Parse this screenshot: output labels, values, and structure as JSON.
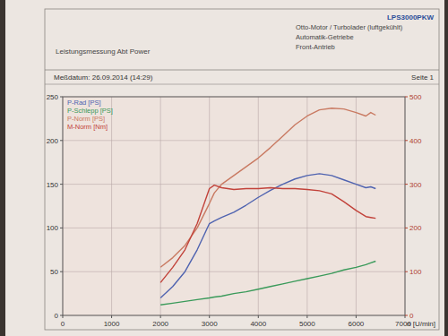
{
  "header": {
    "left": [
      "Leistungsmessung Abt Power"
    ],
    "right": [
      "LPS3000PKW",
      "Otto-Motor / Turbolader (luftgekühlt)",
      "Automatik-Getriebe",
      "Front-Antrieb"
    ],
    "date": "Meßdatum: 26.09.2014 (14:29)",
    "page": "Seite 1"
  },
  "chart_data": {
    "type": "line",
    "x_label": "n [U/min]",
    "x": [
      2000,
      2250,
      2500,
      2750,
      3000,
      3100,
      3250,
      3500,
      3750,
      4000,
      4250,
      4500,
      4750,
      5000,
      5250,
      5500,
      5750,
      6000,
      6200,
      6300,
      6400
    ],
    "series": [
      {
        "name": "P-Rad [PS]",
        "color": "#4f63b0",
        "values": [
          20,
          33,
          50,
          75,
          105,
          108,
          112,
          118,
          126,
          135,
          143,
          150,
          156,
          160,
          162,
          160,
          155,
          150,
          146,
          147,
          145
        ]
      },
      {
        "name": "P-Schlepp [PS]",
        "color": "#3a9a5a",
        "values": [
          12,
          14,
          16,
          18,
          20,
          21,
          22,
          25,
          27,
          30,
          33,
          36,
          39,
          42,
          45,
          48,
          52,
          55,
          58,
          60,
          62
        ]
      },
      {
        "name": "P-Norm [PS]",
        "color": "#c97a62",
        "values": [
          55,
          66,
          80,
          100,
          128,
          140,
          150,
          160,
          170,
          180,
          192,
          205,
          218,
          228,
          235,
          237,
          236,
          232,
          228,
          232,
          229
        ]
      },
      {
        "name": "M-Norm [Nm]",
        "color": "#c2423a",
        "axis": "y2",
        "values": [
          75,
          110,
          150,
          210,
          290,
          298,
          292,
          288,
          290,
          290,
          292,
          290,
          290,
          288,
          285,
          278,
          260,
          240,
          226,
          224,
          222
        ]
      }
    ],
    "xlim": [
      0,
      7000
    ],
    "xticks": [
      0,
      1000,
      2000,
      3000,
      4000,
      5000,
      6000,
      7000
    ],
    "ylim": [
      0,
      250
    ],
    "yticks": [
      0,
      50,
      100,
      150,
      200,
      250
    ],
    "y2lim": [
      0,
      500
    ],
    "y2ticks": [
      0,
      100,
      200,
      300,
      400,
      500
    ],
    "grid": true,
    "legend": "top-left"
  }
}
